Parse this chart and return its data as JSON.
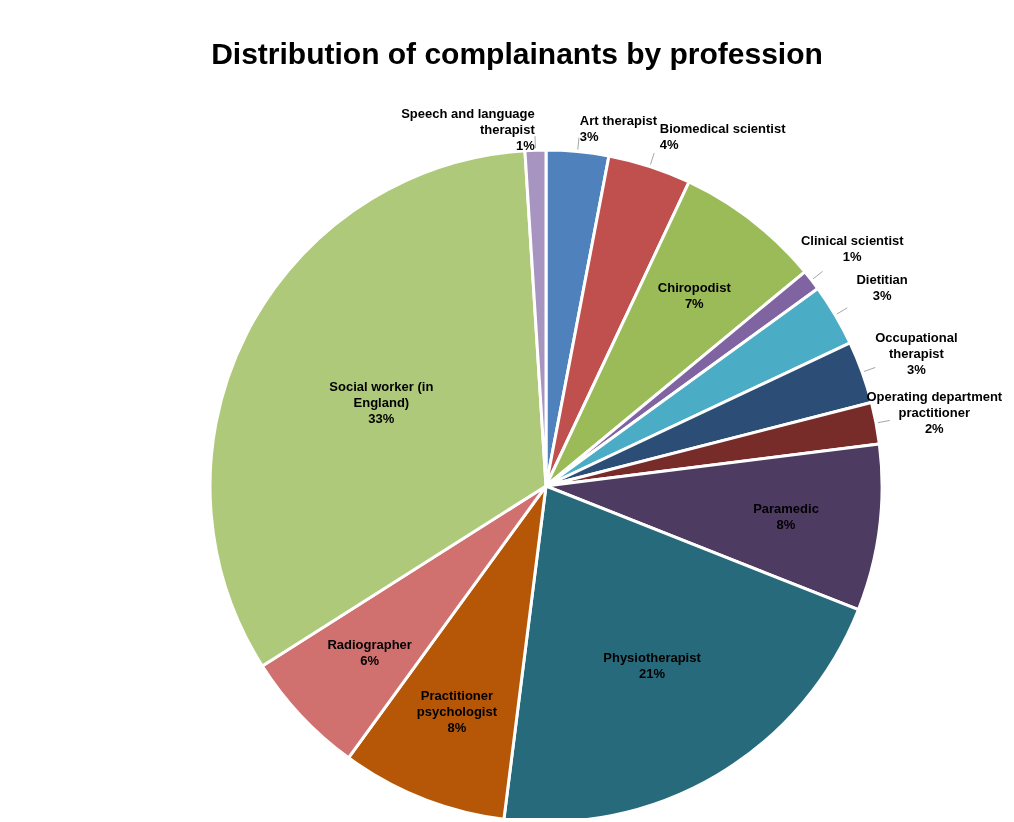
{
  "chart_data": {
    "type": "pie",
    "title": "Distribution of complainants by profession",
    "categories": [
      "Art therapist",
      "Biomedical scientist",
      "Chiropodist",
      "Clinical scientist",
      "Dietitian",
      "Occupational therapist",
      "Operating department practitioner",
      "Paramedic",
      "Physiotherapist",
      "Practitioner psychologist",
      "Radiographer",
      "Social worker (in England)",
      "Speech and language therapist"
    ],
    "values": [
      3,
      4,
      7,
      1,
      3,
      3,
      2,
      8,
      21,
      8,
      6,
      33,
      1
    ],
    "value_labels": [
      "3%",
      "4%",
      "7%",
      "1%",
      "3%",
      "3%",
      "2%",
      "8%",
      "21%",
      "8%",
      "6%",
      "33%",
      "1%"
    ],
    "colors": [
      "#4f81bd",
      "#c0504d",
      "#9bbb59",
      "#8064a2",
      "#4bacc6",
      "#2c4d75",
      "#772c2a",
      "#4d3b62",
      "#276a7c",
      "#b65708",
      "#d0716f",
      "#afc97a",
      "#a794c0"
    ]
  }
}
